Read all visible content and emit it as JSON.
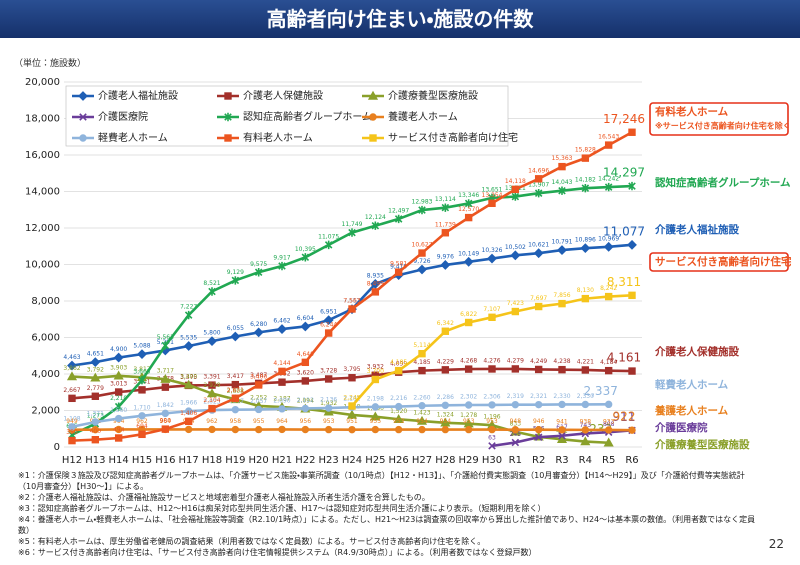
{
  "chart_data": {
    "type": "line",
    "title": "高齢者向け住まい・施設の件数",
    "unit": "（単位：施設数）",
    "categories": [
      "H12",
      "H13",
      "H14",
      "H15",
      "H16",
      "H17",
      "H18",
      "H19",
      "H20",
      "H21",
      "H22",
      "H23",
      "H24",
      "H25",
      "H26",
      "H27",
      "H28",
      "H29",
      "H30",
      "R1",
      "R2",
      "R3",
      "R4",
      "R5",
      "R6"
    ],
    "ylim": [
      0,
      20000
    ],
    "yticks": [
      0,
      {
        "value": 2000,
        "label": "2,000"
      },
      {
        "value": 4000,
        "label": "4,000"
      },
      {
        "value": 6000,
        "label": "6,000"
      },
      {
        "value": 8000,
        "label": "8,000"
      },
      {
        "value": 10000,
        "label": "10,000"
      },
      {
        "value": 12000,
        "label": "12,000"
      },
      {
        "value": 14000,
        "label": "14,000"
      },
      {
        "value": 16000,
        "label": "16,000"
      },
      {
        "value": 18000,
        "label": "18,000"
      },
      {
        "value": 20000,
        "label": "20,000"
      }
    ],
    "grid": true,
    "series": [
      {
        "name": "介護老人福祉施設",
        "color": "#1f5fb5",
        "marker": "diamond",
        "values": [
          4463,
          4651,
          4900,
          5088,
          5291,
          5535,
          5800,
          6055,
          6280,
          6462,
          6604,
          6951,
          7552,
          8935,
          9419,
          9726,
          9976,
          10149,
          10326,
          10502,
          10621,
          10791,
          10896,
          10969,
          11077
        ],
        "value_labels": [
          "4,463",
          "4,651",
          "4,900",
          "5,088",
          "5,291",
          "5,535",
          "5,800",
          "6,055",
          "6,280",
          "6,462",
          "6,604",
          "6,951",
          "7,552",
          "8,935",
          "9,419",
          "9,726",
          "9,976",
          "10,149",
          "10,326",
          "10,502",
          "10,621",
          "10,791",
          "10,896",
          "10,969",
          "11,077"
        ]
      },
      {
        "name": "介護老人保健施設",
        "color": "#a3302b",
        "marker": "square",
        "values": [
          2667,
          2779,
          3013,
          3131,
          3278,
          3375,
          3391,
          3417,
          3487,
          3552,
          3620,
          3728,
          3795,
          3932,
          4099,
          4185,
          4229,
          4268,
          4276,
          4279,
          4249,
          4238,
          4221,
          4184,
          4161
        ],
        "value_labels": [
          "2,667",
          "2,779",
          "3,013",
          "3,131",
          "3,278",
          "3,375",
          "3,391",
          "3,417",
          "3,487",
          "3,552",
          "3,620",
          "3,728",
          "3,795",
          "3,932",
          "4,099",
          "4,185",
          "4,229",
          "4,268",
          "4,276",
          "4,279",
          "4,249",
          "4,238",
          "4,221",
          "4,184",
          "4,161"
        ]
      },
      {
        "name": "介護療養型医療施設",
        "color": "#8aa02a",
        "marker": "triangle",
        "values": [
          3862,
          3792,
          3903,
          3817,
          3717,
          3400,
          2929,
          2608,
          2252,
          2187,
          2094,
          1932,
          1759,
          1660,
          1520,
          1423,
          1324,
          1278,
          1196,
          833,
          556,
          421,
          300,
          233,
          null
        ],
        "value_labels": [
          "3,862",
          "3,792",
          "3,903",
          "3,817",
          "3,717",
          "3,400",
          "2,929",
          "2,608",
          "2,252",
          "2,187",
          "2,094",
          "1,932",
          "1,759",
          "1,660",
          "1,520",
          "1,423",
          "1,324",
          "1,278",
          "1,196",
          "833",
          "556",
          "421",
          "300",
          "233",
          null
        ]
      },
      {
        "name": "介護医療院",
        "color": "#6a3d9a",
        "marker": "x",
        "values": [
          null,
          null,
          null,
          null,
          null,
          null,
          null,
          null,
          null,
          null,
          null,
          null,
          null,
          null,
          null,
          null,
          null,
          null,
          63,
          245,
          536,
          617,
          743,
          808,
          911
        ],
        "value_labels": [
          null,
          null,
          null,
          null,
          null,
          null,
          null,
          null,
          null,
          null,
          null,
          null,
          null,
          null,
          null,
          null,
          null,
          null,
          "63",
          "245",
          "536",
          "617",
          "743",
          "808",
          "911"
        ]
      },
      {
        "name": "認知症高齢者グループホーム",
        "color": "#21a852",
        "marker": "star",
        "values": [
          675,
          1273,
          2210,
          3665,
          5563,
          7227,
          8521,
          9129,
          9575,
          9917,
          10395,
          11075,
          11749,
          12124,
          12497,
          12983,
          13114,
          13346,
          13651,
          13721,
          13907,
          14043,
          14182,
          14242,
          14297
        ],
        "value_labels": [
          "675",
          "1,273",
          "2,210",
          "3,665",
          "5,563",
          "7,227",
          "8,521",
          "9,129",
          "9,575",
          "9,917",
          "10,395",
          "11,075",
          "11,749",
          "12,124",
          "12,497",
          "12,983",
          "13,114",
          "13,346",
          "13,651",
          "13,721",
          "13,907",
          "14,043",
          "14,182",
          "14,242",
          "14,297"
        ]
      },
      {
        "name": "養護老人ホーム",
        "color": "#e8801f",
        "marker": "circle",
        "values": [
          949,
          951,
          964,
          962,
          964,
          964,
          962,
          958,
          955,
          964,
          956,
          953,
          951,
          955,
          953,
          954,
          954,
          953,
          953,
          948,
          946,
          941,
          938,
          933,
          922
        ],
        "value_labels": [
          "949",
          "951",
          "964",
          "962",
          "964",
          "964",
          "962",
          "958",
          "955",
          "964",
          "956",
          "953",
          "951",
          "955",
          "953",
          "954",
          "954",
          "953",
          "953",
          "948",
          "946",
          "941",
          "938",
          "933",
          "922"
        ]
      },
      {
        "name": "軽費老人ホーム",
        "color": "#8fb4dc",
        "marker": "circle",
        "values": [
          1108,
          1371,
          1560,
          1710,
          1842,
          1966,
          2023,
          2047,
          2057,
          2090,
          2112,
          2136,
          2182,
          2198,
          2216,
          2260,
          2286,
          2302,
          2306,
          2319,
          2321,
          2330,
          2330,
          2337,
          null
        ],
        "value_labels": [
          "1,108",
          "1,371",
          "1,560",
          "1,710",
          "1,842",
          "1,966",
          "2,023",
          "2,047",
          "2,057",
          "2,090",
          "2,112",
          "2,136",
          "2,182",
          "2,198",
          "2,216",
          "2,260",
          "2,286",
          "2,302",
          "2,306",
          "2,319",
          "2,321",
          "2,330",
          "2,330",
          "2,337",
          null
        ]
      },
      {
        "name": "有料老人ホーム",
        "color": "#ec5520",
        "marker": "square",
        "values": [
          350,
          400,
          494,
          694,
          980,
          1406,
          2104,
          2671,
          3400,
          4144,
          4640,
          6244,
          7563,
          8499,
          9581,
          10627,
          11739,
          12570,
          13354,
          14118,
          14696,
          15363,
          15828,
          16543,
          17246
        ],
        "value_labels": [
          "350",
          "400",
          "494",
          "694",
          "980",
          "1,406",
          "2,104",
          "2,671",
          "3,400",
          "4,144",
          "4,640",
          "6,244",
          "7,563",
          "8,499",
          "9,581",
          "10,627",
          "11,739",
          "12,570",
          "13,354",
          "14,118",
          "14,696",
          "15,363",
          "15,828",
          "16,543",
          "17,246"
        ]
      },
      {
        "name": "サービス付き高齢者向け住宅",
        "color": "#f5c41a",
        "marker": "square",
        "values": [
          null,
          null,
          null,
          null,
          null,
          null,
          null,
          null,
          null,
          null,
          null,
          null,
          2245,
          3700,
          4185,
          5114,
          6342,
          6822,
          7107,
          7423,
          7697,
          7856,
          8130,
          8242,
          8311
        ],
        "value_labels": [
          null,
          null,
          null,
          null,
          null,
          null,
          null,
          null,
          null,
          null,
          null,
          null,
          "2,245",
          "3,700",
          "4,185",
          "5,114",
          "6,342",
          "6,822",
          "7,107",
          "7,423",
          "7,697",
          "7,856",
          "8,130",
          "8,242",
          "8,311"
        ]
      }
    ],
    "annotations": [
      {
        "lines": [
          "有料老人ホーム",
          "※サービス付き高齢者向け住宅を除く"
        ],
        "color": "#ec5520",
        "boxed": true
      },
      {
        "lines": [
          "認知症高齢者グループホーム"
        ],
        "color": "#21a852",
        "boxed": false
      },
      {
        "lines": [
          "介護老人福祉施設"
        ],
        "color": "#1f5fb5",
        "boxed": false
      },
      {
        "lines": [
          "サービス付き高齢者向け住宅"
        ],
        "color": "#ec5520",
        "boxed": true
      },
      {
        "lines": [
          "介護老人保健施設"
        ],
        "color": "#a3302b",
        "boxed": false
      },
      {
        "lines": [
          "軽費老人ホーム"
        ],
        "color": "#8fb4dc",
        "boxed": false
      },
      {
        "lines": [
          "養護老人ホーム"
        ],
        "color": "#e8801f",
        "boxed": false
      },
      {
        "lines": [
          "介護医療院"
        ],
        "color": "#6a3d9a",
        "boxed": false
      },
      {
        "lines": [
          "介護療養型医療施設"
        ],
        "color": "#8aa02a",
        "boxed": false
      }
    ],
    "notes": [
      "※1：介護保険３施設及び認知症高齢者グループホームは、「介護サービス施設・事業所調査（10/1時点）【H12・H13】」、「介護給付費実態調査（10月審査分）【H14～H29】」及び「介護給付費等実態統計（10月審査分）【H30～】」による。",
      "※2：介護老人福祉施設は、介護福祉施設サービスと地域密着型介護老人福祉施設入所者生活介護を合算したもの。",
      "※3：認知症高齢者グループホームは、H12～H16は痴呆対応型共同生活介護、H17～は認知症対応型共同生活介護により表示。（短期利用を除く）",
      "※4：養護老人ホーム・軽費老人ホームは、「社会福祉施設等調査（R2.10/1時点）」による。ただし、H21～H23は調査票の回収率から算出した推計値であり、H24～は基本票の数値。（利用者数ではなく定員数）",
      "※5：有料老人ホームは、厚生労働省老健局の調査結果（利用者数ではなく定員数）による。サービス付き高齢者向け住宅を除く。",
      "※6：サービス付き高齢者向け住宅は、「サービス付き高齢者向け住宅情報提供システム（R4.9/30時点）」による。（利用者数ではなく登録戸数）"
    ]
  },
  "page_number": "22"
}
